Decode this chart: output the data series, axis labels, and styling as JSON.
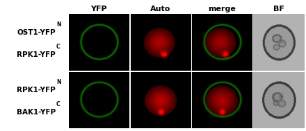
{
  "col_labels": [
    "YFP",
    "Auto",
    "merge",
    "BF"
  ],
  "row_label_pairs": [
    [
      [
        "OST1-YFP",
        "N"
      ],
      [
        "RPK1-YFP",
        "C"
      ]
    ],
    [
      [
        "RPK1-YFP",
        "N"
      ],
      [
        "BAK1-YFP",
        "C"
      ]
    ]
  ],
  "figure_bg": "#ffffff",
  "col_label_fontsize": 8,
  "row_label_fontsize": 7.5,
  "green_dim": 120,
  "red_bright": 220
}
